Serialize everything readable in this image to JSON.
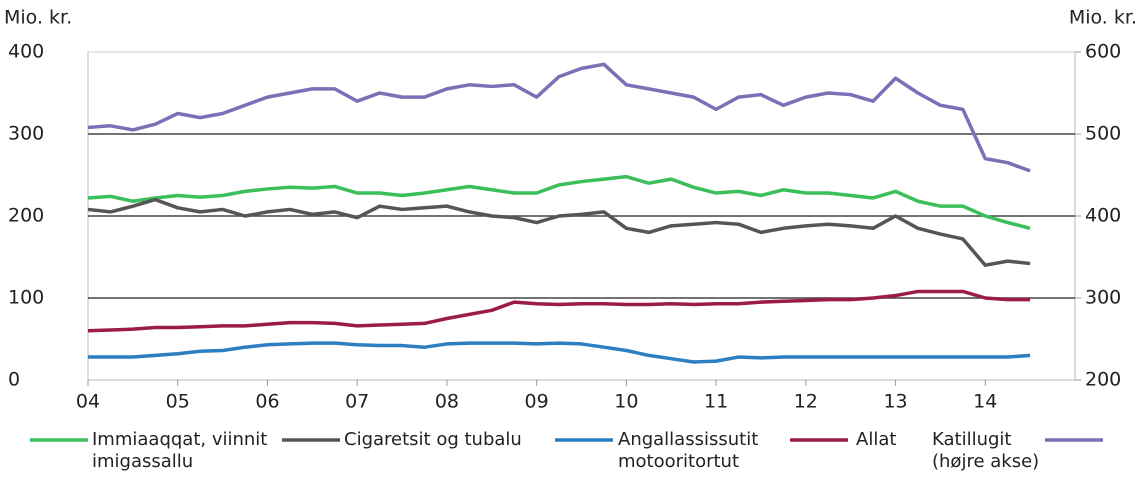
{
  "chart_data": {
    "type": "line",
    "y_label": "Mio. kr.",
    "y2_label": "Mio. kr.",
    "x": [
      2004,
      2004.25,
      2004.5,
      2004.75,
      2005,
      2005.25,
      2005.5,
      2005.75,
      2006,
      2006.25,
      2006.5,
      2006.75,
      2007,
      2007.25,
      2007.5,
      2007.75,
      2008,
      2008.25,
      2008.5,
      2008.75,
      2009,
      2009.25,
      2009.5,
      2009.75,
      2010,
      2010.25,
      2010.5,
      2010.75,
      2011,
      2011.25,
      2011.5,
      2011.75,
      2012,
      2012.25,
      2012.5,
      2012.75,
      2013,
      2013.25,
      2013.5,
      2013.75,
      2014,
      2014.25,
      2014.5
    ],
    "xlim": [
      2004,
      2015
    ],
    "xticks": [
      {
        "value": 2004,
        "label": "04"
      },
      {
        "value": 2005,
        "label": "05"
      },
      {
        "value": 2006,
        "label": "06"
      },
      {
        "value": 2007,
        "label": "07"
      },
      {
        "value": 2008,
        "label": "08"
      },
      {
        "value": 2009,
        "label": "09"
      },
      {
        "value": 2010,
        "label": "10"
      },
      {
        "value": 2011,
        "label": "11"
      },
      {
        "value": 2012,
        "label": "12"
      },
      {
        "value": 2013,
        "label": "13"
      },
      {
        "value": 2014,
        "label": "14"
      }
    ],
    "ylim": [
      0,
      400
    ],
    "yticks": [
      0,
      100,
      200,
      300,
      400
    ],
    "y2lim": [
      200,
      600
    ],
    "y2ticks": [
      200,
      300,
      400,
      500,
      600
    ],
    "grid": true,
    "legend": "bottom",
    "series": [
      {
        "name": "Immiaaqqat, viinnit imigassallu",
        "color": "#3cbf5a",
        "values": [
          222,
          224,
          218,
          222,
          225,
          223,
          225,
          230,
          233,
          235,
          234,
          236,
          228,
          228,
          225,
          228,
          232,
          236,
          232,
          228,
          228,
          238,
          242,
          245,
          248,
          240,
          245,
          235,
          228,
          230,
          225,
          232,
          228,
          228,
          225,
          222,
          230,
          218,
          212,
          212,
          200,
          192,
          185
        ]
      },
      {
        "name": "Cigaretsit og tubalu",
        "color": "#555555",
        "values": [
          208,
          205,
          212,
          220,
          210,
          205,
          208,
          200,
          205,
          208,
          202,
          205,
          198,
          212,
          208,
          210,
          212,
          205,
          200,
          198,
          192,
          200,
          202,
          205,
          185,
          180,
          188,
          190,
          192,
          190,
          180,
          185,
          188,
          190,
          188,
          185,
          200,
          185,
          178,
          172,
          140,
          145,
          142
        ]
      },
      {
        "name": "Angallassissutit motooritortut",
        "color": "#2e7fc1",
        "values": [
          28,
          28,
          28,
          30,
          32,
          35,
          36,
          40,
          43,
          44,
          45,
          45,
          43,
          42,
          42,
          40,
          44,
          45,
          45,
          45,
          44,
          45,
          44,
          40,
          36,
          30,
          26,
          22,
          23,
          28,
          27,
          28,
          28,
          28,
          28,
          28,
          28,
          28,
          28,
          28,
          28,
          28,
          30
        ]
      },
      {
        "name": "Allat",
        "color": "#9b1b4a",
        "values": [
          60,
          61,
          62,
          64,
          64,
          65,
          66,
          66,
          68,
          70,
          70,
          69,
          66,
          67,
          68,
          69,
          75,
          80,
          85,
          95,
          93,
          92,
          93,
          93,
          92,
          92,
          93,
          92,
          93,
          93,
          95,
          96,
          97,
          98,
          98,
          100,
          103,
          108,
          108,
          108,
          100,
          98,
          98
        ]
      },
      {
        "name": "Katillugit (højre akse)",
        "color": "#7b6fb5",
        "axis": "y2",
        "values": [
          508,
          510,
          505,
          512,
          525,
          520,
          525,
          535,
          545,
          550,
          555,
          555,
          540,
          550,
          545,
          545,
          555,
          560,
          558,
          560,
          545,
          570,
          580,
          585,
          560,
          555,
          550,
          545,
          530,
          545,
          548,
          535,
          545,
          550,
          548,
          540,
          568,
          550,
          535,
          530,
          470,
          465,
          455
        ]
      }
    ]
  }
}
